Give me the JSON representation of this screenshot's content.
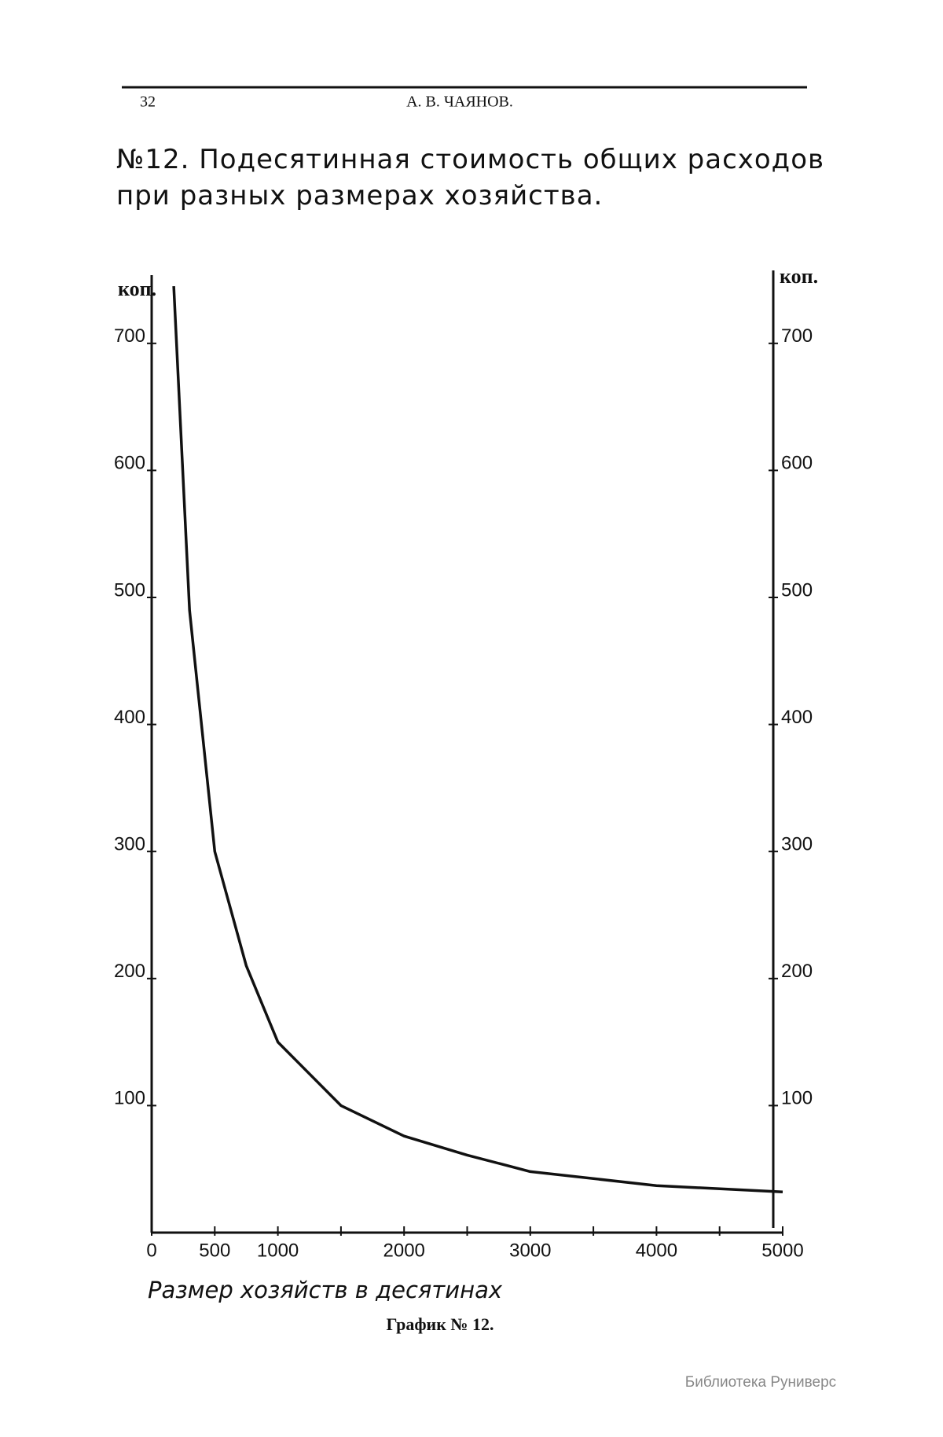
{
  "header": {
    "page_number": "32",
    "author": "А. В. ЧАЯНОВ."
  },
  "chart_data": {
    "type": "line",
    "title": "№12. Подесятинная стоимость общих расходов при разных размерах хозяйства.",
    "ylabel": "коп.",
    "xlabel": "Размер хозяйств в десятинах",
    "x": [
      175,
      300,
      500,
      750,
      1000,
      1500,
      2000,
      2500,
      3000,
      4000,
      5000
    ],
    "values": [
      745,
      490,
      300,
      210,
      150,
      100,
      76,
      61,
      48,
      37,
      32
    ],
    "color": "#111111",
    "xlim": [
      0,
      5000
    ],
    "xticks": [
      0,
      500,
      1000,
      2000,
      3000,
      4000,
      5000
    ],
    "xminorticks": [
      1500,
      2500,
      3500,
      4500
    ],
    "ylim": [
      0,
      750
    ],
    "yticks": [
      100,
      200,
      300,
      400,
      500,
      600,
      700
    ],
    "right_axis": true
  },
  "caption": "График № 12.",
  "watermark": "Библиотека Руниверс"
}
